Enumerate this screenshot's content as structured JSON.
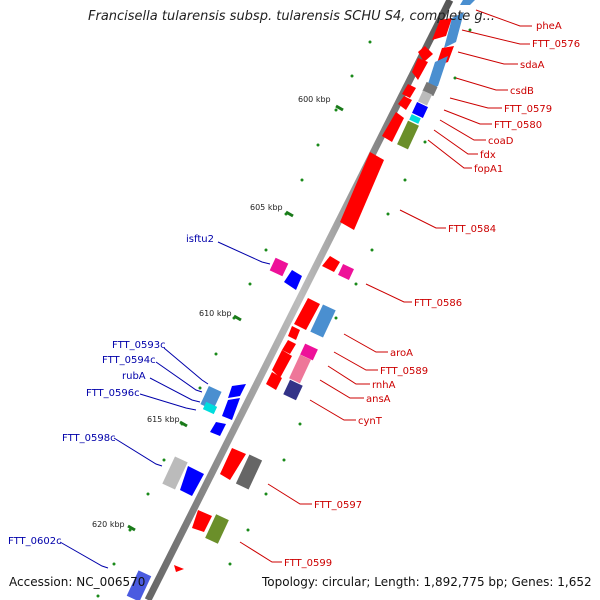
{
  "title": "Francisella tularensis subsp. tularensis SCHU S4, complete g...",
  "accession": "Accession: NC_006570",
  "summary": "Topology: circular; Length: 1,892,775 bp; Genes: 1,652",
  "ticks": [
    "600 kbp",
    "605 kbp",
    "610 kbp",
    "615 kbp",
    "620 kbp"
  ],
  "features_right": [
    {
      "label": "pheA",
      "color": "#cc0000"
    },
    {
      "label": "FTT_0576",
      "color": "#cc0000"
    },
    {
      "label": "sdaA",
      "color": "#cc0000"
    },
    {
      "label": "csdB",
      "color": "#cc0000"
    },
    {
      "label": "FTT_0579",
      "color": "#cc0000"
    },
    {
      "label": "FTT_0580",
      "color": "#cc0000"
    },
    {
      "label": "coaD",
      "color": "#cc0000"
    },
    {
      "label": "fdx",
      "color": "#cc0000"
    },
    {
      "label": "fopA1",
      "color": "#cc0000"
    },
    {
      "label": "FTT_0584",
      "color": "#cc0000"
    },
    {
      "label": "FTT_0586",
      "color": "#cc0000"
    },
    {
      "label": "aroA",
      "color": "#cc0000"
    },
    {
      "label": "FTT_0589",
      "color": "#cc0000"
    },
    {
      "label": "rnhA",
      "color": "#cc0000"
    },
    {
      "label": "ansA",
      "color": "#cc0000"
    },
    {
      "label": "cynT",
      "color": "#cc0000"
    },
    {
      "label": "FTT_0597",
      "color": "#cc0000"
    },
    {
      "label": "FTT_0599",
      "color": "#cc0000"
    }
  ],
  "features_left": [
    {
      "label": "isftu2",
      "color": "#0000aa"
    },
    {
      "label": "FTT_0593c",
      "color": "#0000aa"
    },
    {
      "label": "FTT_0594c",
      "color": "#0000aa"
    },
    {
      "label": "rubA",
      "color": "#0000aa"
    },
    {
      "label": "FTT_0596c",
      "color": "#0000aa"
    },
    {
      "label": "FTT_0598c",
      "color": "#0000aa"
    },
    {
      "label": "FTT_0602c",
      "color": "#0000aa"
    }
  ],
  "colors": {
    "forward_gene": "#ff0000",
    "reverse_gene": "#0000ff",
    "backbone": "#999999",
    "tick": "#1a7a1a",
    "dot": "#1a8a1a"
  }
}
